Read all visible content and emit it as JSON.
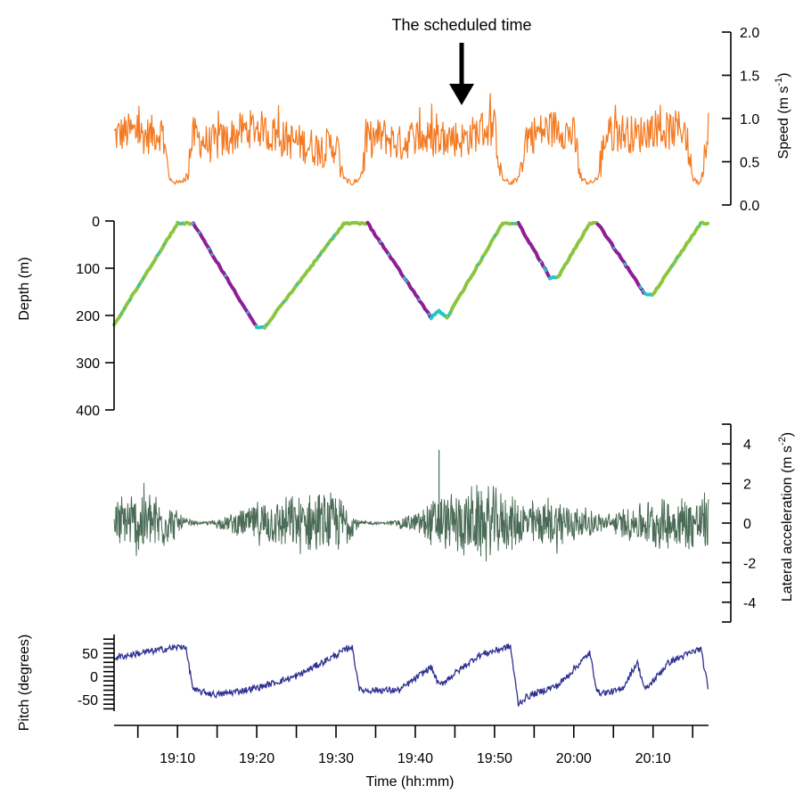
{
  "annotation": {
    "text": "The scheduled time",
    "time": "19:46"
  },
  "colors": {
    "speed": "#f47920",
    "depth_descent": "#8e1e96",
    "depth_ascent": "#8cc63f",
    "depth_bottom": "#26c6c6",
    "lateral": "#4a6b55",
    "pitch": "#2e3192"
  },
  "chart_data": [
    {
      "type": "line",
      "panel": "speed",
      "ylabel_main": "Speed (m s",
      "ylabel_sup": "-1",
      "ylabel_close": ")",
      "ylim": [
        0.0,
        2.0
      ],
      "ticks": [
        "0.0",
        "0.5",
        "1.0",
        "1.5",
        "2.0"
      ],
      "series": [
        {
          "x": [
            "19:02",
            "19:04",
            "19:06",
            "19:08",
            "19:09",
            "19:10",
            "19:11",
            "19:12",
            "19:14",
            "19:16",
            "19:18",
            "19:20",
            "19:22",
            "19:24",
            "19:26",
            "19:28",
            "19:30",
            "19:31",
            "19:32",
            "19:33",
            "19:34",
            "19:36",
            "19:38",
            "19:40",
            "19:42",
            "19:44",
            "19:46",
            "19:48",
            "19:50",
            "19:51",
            "19:52",
            "19:53",
            "19:54",
            "19:56",
            "19:58",
            "20:00",
            "20:01",
            "20:02",
            "20:03",
            "20:04",
            "20:06",
            "20:08",
            "20:10",
            "20:12",
            "20:14",
            "20:15",
            "20:16",
            "20:17"
          ],
          "values": [
            0.8,
            0.85,
            0.8,
            0.85,
            0.3,
            0.25,
            0.3,
            0.8,
            0.7,
            0.75,
            0.85,
            0.9,
            0.8,
            0.75,
            0.7,
            0.65,
            0.7,
            0.3,
            0.25,
            0.3,
            0.75,
            0.8,
            0.7,
            0.8,
            0.75,
            0.8,
            0.75,
            0.85,
            0.9,
            0.3,
            0.25,
            0.3,
            0.8,
            0.85,
            0.9,
            0.8,
            0.3,
            0.25,
            0.3,
            0.8,
            0.85,
            0.8,
            0.9,
            0.85,
            0.9,
            0.3,
            0.25,
            1.0
          ]
        }
      ]
    },
    {
      "type": "line",
      "panel": "depth",
      "ylabel": "Depth (m)",
      "ylim": [
        400,
        0
      ],
      "ticks": [
        "0",
        "100",
        "200",
        "300",
        "400"
      ],
      "series": [
        {
          "x": [
            "19:02",
            "19:10",
            "19:12",
            "19:20",
            "19:21",
            "19:31",
            "19:34",
            "19:42",
            "19:43",
            "19:44",
            "19:51",
            "19:53",
            "19:57",
            "19:58",
            "20:02",
            "20:03",
            "20:09",
            "20:10",
            "20:16",
            "20:17"
          ],
          "values": [
            220,
            5,
            5,
            225,
            225,
            5,
            5,
            205,
            190,
            205,
            5,
            5,
            120,
            120,
            5,
            5,
            155,
            155,
            5,
            5
          ]
        }
      ]
    },
    {
      "type": "line",
      "panel": "lateral",
      "ylabel_main": "Lateral acceleration (m s",
      "ylabel_sup": "-2",
      "ylabel_close": ")",
      "ylim": [
        -5,
        5
      ],
      "ticks": [
        "-4",
        "-2",
        "0",
        "2",
        "4"
      ],
      "series": [
        {
          "x": [
            "19:02",
            "19:06",
            "19:08",
            "19:11",
            "19:13",
            "19:16",
            "19:20",
            "19:24",
            "19:27",
            "19:31",
            "19:33",
            "19:36",
            "19:38",
            "19:40",
            "19:42",
            "19:45",
            "19:49",
            "19:52",
            "19:55",
            "19:58",
            "20:01",
            "20:04",
            "20:07",
            "20:10",
            "20:14",
            "20:17"
          ],
          "amplitude": [
            1.4,
            2.2,
            1.6,
            0.3,
            0.05,
            0.4,
            1.2,
            1.5,
            1.8,
            1.6,
            0.15,
            0.05,
            0.3,
            0.6,
            1.4,
            1.8,
            2.2,
            1.5,
            1.3,
            1.6,
            0.9,
            0.5,
            1.0,
            1.4,
            1.6,
            1.7
          ]
        }
      ]
    },
    {
      "type": "line",
      "panel": "pitch",
      "ylabel": "Pitch (degrees)",
      "ylim": [
        -75,
        90
      ],
      "ticks": [
        "-50",
        "0",
        "50"
      ],
      "series": [
        {
          "x": [
            "19:02",
            "19:07",
            "19:11",
            "19:12",
            "19:15",
            "19:20",
            "19:25",
            "19:31",
            "19:32",
            "19:33",
            "19:38",
            "19:40",
            "19:42",
            "19:43",
            "19:48",
            "19:52",
            "19:53",
            "19:54",
            "19:57",
            "19:58",
            "20:02",
            "20:03",
            "20:04",
            "20:06",
            "20:08",
            "20:09",
            "20:12",
            "20:16",
            "20:17"
          ],
          "values": [
            40,
            55,
            65,
            -30,
            -40,
            -25,
            0,
            55,
            65,
            -30,
            -30,
            -5,
            20,
            -20,
            45,
            65,
            -60,
            -45,
            -25,
            -20,
            50,
            -35,
            -35,
            -30,
            30,
            -30,
            30,
            60,
            -30
          ]
        }
      ]
    }
  ],
  "time_axis": {
    "label": "Time (hh:mm)",
    "start": "19:02",
    "end": "20:17",
    "major_ticks": [
      "19:10",
      "19:20",
      "19:30",
      "19:40",
      "19:50",
      "20:00",
      "20:10"
    ],
    "minor_ticks": [
      "19:05",
      "19:15",
      "19:25",
      "19:35",
      "19:45",
      "19:55",
      "20:05",
      "20:15"
    ]
  }
}
